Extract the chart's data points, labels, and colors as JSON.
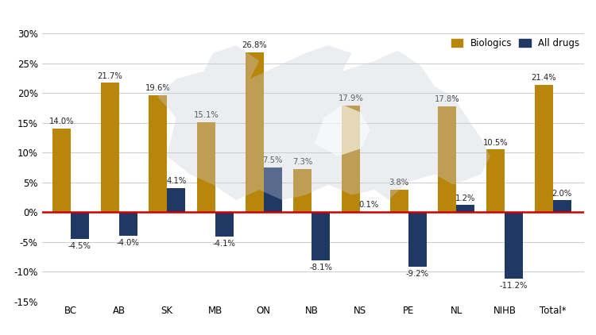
{
  "categories": [
    "BC",
    "AB",
    "SK",
    "MB",
    "ON",
    "NB",
    "NS",
    "PE",
    "NL",
    "NIHB",
    "Total*"
  ],
  "biologics": [
    14.0,
    21.7,
    19.6,
    15.1,
    26.8,
    7.3,
    17.9,
    3.8,
    17.8,
    10.5,
    21.4
  ],
  "all_drugs": [
    -4.5,
    -4.0,
    4.1,
    -4.1,
    7.5,
    -8.1,
    0.1,
    -9.2,
    1.2,
    -11.2,
    2.0
  ],
  "biologics_color": "#B8860B",
  "all_drugs_color": "#1F3864",
  "bar_width": 0.38,
  "ylim": [
    -15,
    30
  ],
  "yticks": [
    -15,
    -10,
    -5,
    0,
    5,
    10,
    15,
    20,
    25,
    30
  ],
  "ytick_labels": [
    "-15%",
    "-10%",
    "-5%",
    "0%",
    "5%",
    "10%",
    "15%",
    "20%",
    "25%",
    "30%"
  ],
  "zero_line_color": "#CC0000",
  "grid_color": "#cccccc",
  "background_color": "#ffffff",
  "legend_biologics": "Biologics",
  "legend_all_drugs": "All drugs",
  "label_fontsize": 7.2,
  "axis_fontsize": 8.5,
  "legend_fontsize": 8.5,
  "map_color": "#c8cdd8",
  "map_alpha": 0.35
}
